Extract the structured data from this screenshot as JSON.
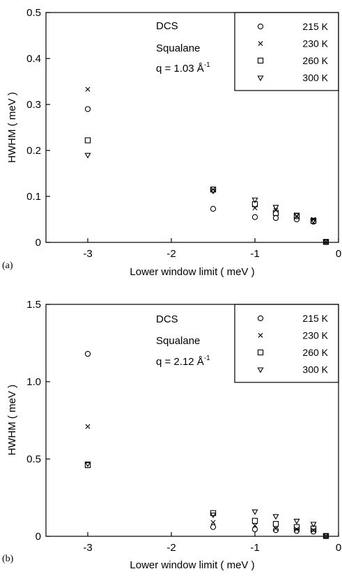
{
  "chart_data": [
    {
      "type": "scatter",
      "panel_label": "(a)",
      "xlabel": "Lower window limit ( meV )",
      "ylabel": "HWHM ( meV )",
      "xlim": [
        -3.5,
        0
      ],
      "ylim": [
        0,
        0.5
      ],
      "xticks": [
        -3,
        -2,
        -1,
        0
      ],
      "xtick_labels": [
        "-3",
        "-2",
        "-1",
        "0"
      ],
      "yticks": [
        0,
        0.1,
        0.2,
        0.3,
        0.4,
        0.5
      ],
      "ytick_labels": [
        "0",
        "0.1",
        "0.2",
        "0.3",
        "0.4",
        "0.5"
      ],
      "grid": false,
      "legend_position": "top-right",
      "annotation": {
        "line1": "DCS",
        "line2": "Squalane",
        "q_prefix": "q = 1.03 Å",
        "q_sup": "-1"
      },
      "series": [
        {
          "name": "215 K",
          "marker": "circle",
          "x": [
            -3,
            -1.5,
            -1,
            -0.75,
            -0.5,
            -0.3,
            -0.15
          ],
          "y": [
            0.29,
            0.073,
            0.055,
            0.053,
            0.05,
            0.045,
            0.001
          ]
        },
        {
          "name": "230 K",
          "marker": "x",
          "x": [
            -3,
            -1.5,
            -1,
            -0.75,
            -0.5,
            -0.3,
            -0.15
          ],
          "y": [
            0.333,
            0.115,
            0.075,
            0.07,
            0.057,
            0.05,
            0.002
          ]
        },
        {
          "name": "260 K",
          "marker": "square",
          "x": [
            -3,
            -1.5,
            -1,
            -0.75,
            -0.5,
            -0.3,
            -0.15
          ],
          "y": [
            0.222,
            0.115,
            0.083,
            0.064,
            0.057,
            0.047,
            0.001
          ]
        },
        {
          "name": "300 K",
          "marker": "triangle-down",
          "x": [
            -3,
            -1.5,
            -1,
            -0.75,
            -0.5,
            -0.3,
            -0.15
          ],
          "y": [
            0.19,
            0.112,
            0.093,
            0.077,
            0.06,
            0.048,
            0.002
          ]
        }
      ]
    },
    {
      "type": "scatter",
      "panel_label": "(b)",
      "xlabel": "Lower window limit ( meV )",
      "ylabel": "HWHM ( meV )",
      "xlim": [
        -3.5,
        0
      ],
      "ylim": [
        0,
        1.5
      ],
      "xticks": [
        -3,
        -2,
        -1,
        0
      ],
      "xtick_labels": [
        "-3",
        "-2",
        "-1",
        "0"
      ],
      "yticks": [
        0,
        0.5,
        1.0,
        1.5
      ],
      "ytick_labels": [
        "0",
        "0.5",
        "1.0",
        "1.5"
      ],
      "grid": false,
      "legend_position": "top-right",
      "annotation": {
        "line1": "DCS",
        "line2": "Squalane",
        "q_prefix": "q = 2.12 Å",
        "q_sup": "-1"
      },
      "series": [
        {
          "name": "215 K",
          "marker": "circle",
          "x": [
            -3,
            -1.5,
            -1,
            -0.75,
            -0.5,
            -0.3,
            -0.15
          ],
          "y": [
            1.18,
            0.06,
            0.045,
            0.04,
            0.035,
            0.03,
            0.002
          ]
        },
        {
          "name": "230 K",
          "marker": "x",
          "x": [
            -3,
            -1.5,
            -1,
            -0.75,
            -0.5,
            -0.3,
            -0.15
          ],
          "y": [
            0.71,
            0.09,
            0.07,
            0.05,
            0.045,
            0.04,
            0.003
          ]
        },
        {
          "name": "260 K",
          "marker": "square",
          "x": [
            -3,
            -1.5,
            -1,
            -0.75,
            -0.5,
            -0.3,
            -0.15
          ],
          "y": [
            0.46,
            0.15,
            0.1,
            0.08,
            0.06,
            0.05,
            0.002
          ]
        },
        {
          "name": "300 K",
          "marker": "triangle-down",
          "x": [
            -3,
            -1.5,
            -1,
            -0.75,
            -0.5,
            -0.3,
            -0.15
          ],
          "y": [
            0.47,
            0.14,
            0.16,
            0.13,
            0.1,
            0.08,
            0.005
          ]
        }
      ]
    }
  ]
}
